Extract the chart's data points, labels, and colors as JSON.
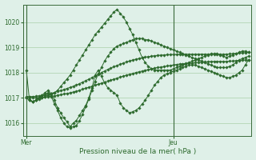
{
  "bg_color": "#dff0e8",
  "grid_color": "#aacfaa",
  "line_color": "#2d6a2d",
  "marker_color": "#2d6a2d",
  "xlabel": "Pression niveau de la mer( hPa )",
  "xlabel_color": "#2d6a2d",
  "tick_color": "#2d6a2d",
  "ylim": [
    1015.5,
    1020.7
  ],
  "yticks": [
    1016,
    1017,
    1018,
    1019,
    1020
  ],
  "xday_labels": [
    [
      "Mer",
      0
    ],
    [
      "Jeu",
      47
    ]
  ],
  "vline_x": [
    0,
    47
  ],
  "n_points": 72,
  "series": [
    {
      "y": [
        1018.1,
        1016.9,
        1016.85,
        1016.9,
        1016.95,
        1017.0,
        1017.05,
        1017.1,
        1017.15,
        1017.2,
        1017.3,
        1017.45,
        1017.6,
        1017.75,
        1017.9,
        1018.1,
        1018.3,
        1018.5,
        1018.7,
        1018.9,
        1019.1,
        1019.3,
        1019.5,
        1019.65,
        1019.8,
        1019.95,
        1020.1,
        1020.25,
        1020.4,
        1020.5,
        1020.35,
        1020.2,
        1020.0,
        1019.75,
        1019.5,
        1019.2,
        1018.9,
        1018.6,
        1018.4,
        1018.25,
        1018.15,
        1018.1,
        1018.1,
        1018.1,
        1018.1,
        1018.1,
        1018.1,
        1018.15,
        1018.2,
        1018.25,
        1018.3,
        1018.35,
        1018.4,
        1018.45,
        1018.5,
        1018.55,
        1018.6,
        1018.65,
        1018.7,
        1018.75,
        1018.75,
        1018.75,
        1018.7,
        1018.65,
        1018.6,
        1018.65,
        1018.7,
        1018.75,
        1018.8,
        1018.85,
        1018.85,
        1018.8
      ]
    },
    {
      "y": [
        1017.0,
        1016.9,
        1016.85,
        1016.9,
        1017.0,
        1017.1,
        1017.2,
        1017.3,
        1017.15,
        1016.9,
        1016.6,
        1016.4,
        1016.2,
        1016.05,
        1015.85,
        1016.0,
        1016.1,
        1016.3,
        1016.5,
        1016.7,
        1017.0,
        1017.4,
        1017.9,
        1018.1,
        1017.85,
        1017.6,
        1017.4,
        1017.3,
        1017.2,
        1017.1,
        1016.8,
        1016.6,
        1016.5,
        1016.4,
        1016.45,
        1016.5,
        1016.6,
        1016.75,
        1016.9,
        1017.1,
        1017.3,
        1017.5,
        1017.65,
        1017.8,
        1017.9,
        1017.95,
        1018.0,
        1018.05,
        1018.1,
        1018.15,
        1018.2,
        1018.25,
        1018.3,
        1018.3,
        1018.3,
        1018.25,
        1018.2,
        1018.15,
        1018.1,
        1018.05,
        1018.0,
        1017.95,
        1017.9,
        1017.85,
        1017.8,
        1017.8,
        1017.85,
        1017.9,
        1018.0,
        1018.1,
        1018.3,
        1018.5
      ]
    },
    {
      "y": [
        1017.0,
        1016.9,
        1016.85,
        1016.9,
        1017.0,
        1017.05,
        1017.1,
        1017.2,
        1017.05,
        1016.75,
        1016.5,
        1016.2,
        1016.0,
        1015.85,
        1015.8,
        1015.85,
        1015.9,
        1016.1,
        1016.35,
        1016.65,
        1016.95,
        1017.3,
        1017.65,
        1017.95,
        1018.2,
        1018.45,
        1018.65,
        1018.8,
        1018.95,
        1019.05,
        1019.1,
        1019.15,
        1019.2,
        1019.25,
        1019.3,
        1019.35,
        1019.35,
        1019.35,
        1019.3,
        1019.3,
        1019.25,
        1019.2,
        1019.15,
        1019.1,
        1019.05,
        1019.0,
        1018.95,
        1018.9,
        1018.85,
        1018.8,
        1018.75,
        1018.7,
        1018.65,
        1018.6,
        1018.55,
        1018.5,
        1018.45,
        1018.4,
        1018.35,
        1018.3,
        1018.25,
        1018.2,
        1018.2,
        1018.2,
        1018.2,
        1018.25,
        1018.3,
        1018.4,
        1018.5,
        1018.55,
        1018.6,
        1018.65
      ]
    },
    {
      "y": [
        1017.0,
        1017.0,
        1017.0,
        1017.0,
        1017.01,
        1017.02,
        1017.03,
        1017.05,
        1017.06,
        1017.08,
        1017.1,
        1017.12,
        1017.15,
        1017.17,
        1017.2,
        1017.23,
        1017.26,
        1017.3,
        1017.34,
        1017.38,
        1017.42,
        1017.46,
        1017.5,
        1017.54,
        1017.58,
        1017.62,
        1017.66,
        1017.7,
        1017.74,
        1017.78,
        1017.82,
        1017.86,
        1017.9,
        1017.93,
        1017.96,
        1018.0,
        1018.03,
        1018.06,
        1018.09,
        1018.12,
        1018.15,
        1018.18,
        1018.2,
        1018.22,
        1018.24,
        1018.26,
        1018.28,
        1018.3,
        1018.32,
        1018.34,
        1018.35,
        1018.36,
        1018.37,
        1018.38,
        1018.39,
        1018.4,
        1018.41,
        1018.42,
        1018.43,
        1018.44,
        1018.44,
        1018.44,
        1018.44,
        1018.44,
        1018.44,
        1018.45,
        1018.46,
        1018.47,
        1018.48,
        1018.49,
        1018.5,
        1018.5
      ]
    },
    {
      "y": [
        1017.05,
        1017.05,
        1017.05,
        1017.06,
        1017.08,
        1017.1,
        1017.12,
        1017.15,
        1017.18,
        1017.21,
        1017.25,
        1017.29,
        1017.33,
        1017.37,
        1017.41,
        1017.46,
        1017.51,
        1017.56,
        1017.62,
        1017.68,
        1017.74,
        1017.8,
        1017.87,
        1017.93,
        1018.0,
        1018.06,
        1018.12,
        1018.18,
        1018.23,
        1018.28,
        1018.33,
        1018.38,
        1018.42,
        1018.46,
        1018.5,
        1018.53,
        1018.56,
        1018.59,
        1018.61,
        1018.63,
        1018.65,
        1018.67,
        1018.68,
        1018.69,
        1018.7,
        1018.71,
        1018.71,
        1018.72,
        1018.72,
        1018.73,
        1018.73,
        1018.73,
        1018.73,
        1018.73,
        1018.73,
        1018.73,
        1018.73,
        1018.73,
        1018.73,
        1018.73,
        1018.73,
        1018.73,
        1018.73,
        1018.73,
        1018.73,
        1018.74,
        1018.75,
        1018.76,
        1018.77,
        1018.78,
        1018.79,
        1018.8
      ]
    }
  ]
}
